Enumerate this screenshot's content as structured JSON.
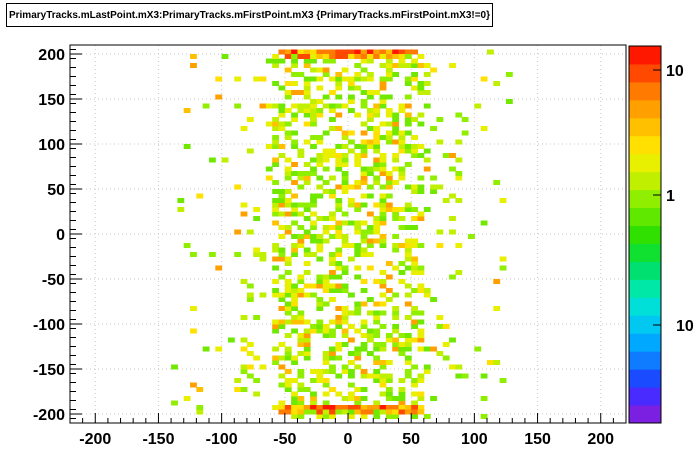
{
  "title": "PrimaryTracks.mLastPoint.mX3:PrimaryTracks.mFirstPoint.mX3 {PrimaryTracks.mFirstPoint.mX3!=0}",
  "chart_data": {
    "type": "heatmap",
    "title": "PrimaryTracks.mLastPoint.mX3:PrimaryTracks.mFirstPoint.mX3 {PrimaryTracks.mFirstPoint.mX3!=0}",
    "xlabel": "",
    "ylabel": "",
    "xlim": [
      -220,
      220
    ],
    "ylim": [
      -210,
      210
    ],
    "x_ticks": [
      -200,
      -150,
      -100,
      -50,
      0,
      50,
      100,
      150,
      200
    ],
    "y_ticks": [
      200,
      150,
      100,
      50,
      0,
      -50,
      -100,
      -150,
      -200
    ],
    "grid": true,
    "colorbar": {
      "scale": "log",
      "labels": [
        "10",
        "1",
        "10"
      ],
      "colors": [
        "#7b1fe0",
        "#4a2bff",
        "#1a4bff",
        "#0f7cff",
        "#00a8ff",
        "#00c8f0",
        "#00e0d8",
        "#00e8a8",
        "#00e070",
        "#10e030",
        "#30e000",
        "#60e800",
        "#90ee00",
        "#c0f000",
        "#e8f000",
        "#ffe000",
        "#ffc000",
        "#ffa000",
        "#ff7a00",
        "#ff4800",
        "#ff1800"
      ]
    },
    "bin_width": 5,
    "bin_height": 5,
    "x_bins": [
      -140,
      -100,
      -85,
      -75,
      -65,
      -55,
      -45,
      -35,
      -25,
      -15,
      -5,
      5,
      15,
      25,
      35,
      45,
      55,
      65,
      75,
      85,
      100,
      120
    ],
    "y_bins": [
      200,
      195,
      185,
      175,
      165,
      155,
      145,
      135,
      125,
      115,
      105,
      95,
      85,
      75,
      65,
      55,
      45,
      35,
      25,
      15,
      5,
      -5,
      -15,
      -25,
      -35,
      -45,
      -55,
      -65,
      -75,
      -85,
      -95,
      -105,
      -115,
      -125,
      -135,
      -145,
      -155,
      -165,
      -175,
      -185,
      -195,
      -200
    ],
    "hot_rows": [
      {
        "y": 200,
        "x_from": -55,
        "x_to": 50,
        "level": "high"
      },
      {
        "y": 195,
        "x_from": -50,
        "x_to": 45,
        "level": "medium"
      },
      {
        "y": -195,
        "x_from": -50,
        "x_to": 50,
        "level": "high"
      },
      {
        "y": -200,
        "x_from": -55,
        "x_to": 55,
        "level": "medium"
      }
    ]
  }
}
